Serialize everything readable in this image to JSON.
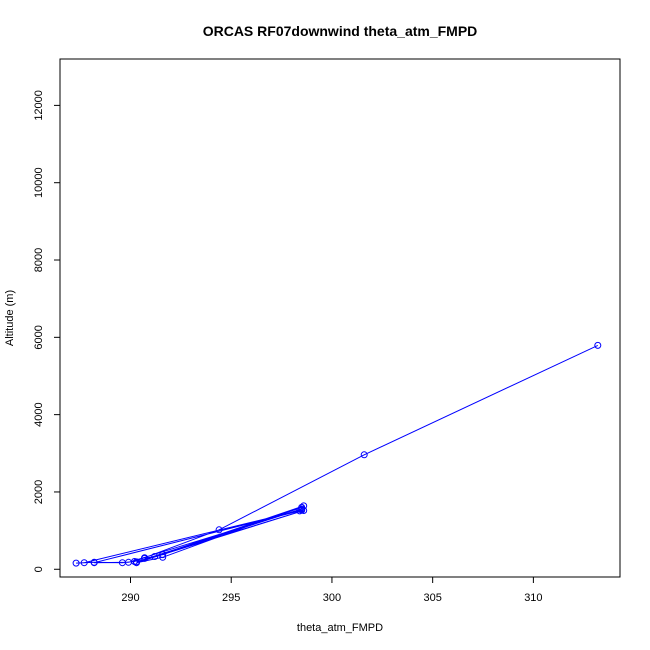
{
  "chart_data": {
    "type": "line",
    "title": "ORCAS RF07downwind theta_atm_FMPD",
    "xlabel": "theta_atm_FMPD",
    "ylabel": "Altitude (m)",
    "xlim": [
      286.5,
      314.3
    ],
    "ylim": [
      -200,
      13200
    ],
    "x_ticks": [
      290,
      295,
      300,
      305,
      310
    ],
    "y_ticks": [
      0,
      2000,
      4000,
      6000,
      8000,
      10000,
      12000
    ],
    "x_tick_labels": [
      "290",
      "295",
      "300",
      "305",
      "310"
    ],
    "y_tick_labels": [
      "0",
      "2000",
      "4000",
      "6000",
      "8000",
      "10000",
      "12000"
    ],
    "series": [
      {
        "color": "#0000ff",
        "markers": "open-circle",
        "points": [
          [
            313.2,
            5790
          ],
          [
            301.6,
            2960
          ],
          [
            294.4,
            1020
          ],
          [
            290.7,
            300
          ],
          [
            290.2,
            200
          ],
          [
            289.6,
            170
          ],
          [
            288.2,
            180
          ],
          [
            287.3,
            160
          ],
          [
            287.7,
            170
          ],
          [
            298.5,
            1530
          ],
          [
            298.4,
            1510
          ],
          [
            288.2,
            170
          ],
          [
            289.9,
            180
          ],
          [
            298.5,
            1560
          ],
          [
            290.3,
            190
          ],
          [
            298.6,
            1520
          ],
          [
            290.3,
            170
          ],
          [
            291.6,
            310
          ],
          [
            298.6,
            1640
          ],
          [
            291.2,
            330
          ],
          [
            290.7,
            280
          ],
          [
            291.6,
            380
          ],
          [
            298.5,
            1600
          ]
        ]
      }
    ]
  }
}
